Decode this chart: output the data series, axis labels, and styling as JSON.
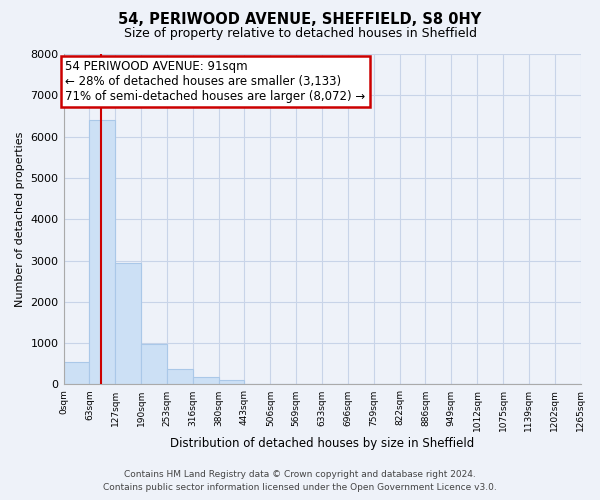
{
  "title": "54, PERIWOOD AVENUE, SHEFFIELD, S8 0HY",
  "subtitle": "Size of property relative to detached houses in Sheffield",
  "xlabel": "Distribution of detached houses by size in Sheffield",
  "ylabel": "Number of detached properties",
  "bin_labels": [
    "0sqm",
    "63sqm",
    "127sqm",
    "190sqm",
    "253sqm",
    "316sqm",
    "380sqm",
    "443sqm",
    "506sqm",
    "569sqm",
    "633sqm",
    "696sqm",
    "759sqm",
    "822sqm",
    "886sqm",
    "949sqm",
    "1012sqm",
    "1075sqm",
    "1139sqm",
    "1202sqm",
    "1265sqm"
  ],
  "bar_heights": [
    550,
    6400,
    2950,
    975,
    370,
    175,
    100,
    0,
    0,
    0,
    0,
    0,
    0,
    0,
    0,
    0,
    0,
    0,
    0,
    0
  ],
  "bar_color": "#cce0f5",
  "bar_edge_color": "#aac8e8",
  "annotation_line1": "54 PERIWOOD AVENUE: 91sqm",
  "annotation_line2": "← 28% of detached houses are smaller (3,133)",
  "annotation_line3": "71% of semi-detached houses are larger (8,072) →",
  "annotation_box_color": "white",
  "annotation_box_edge_color": "#cc0000",
  "property_line_color": "#cc0000",
  "ylim": [
    0,
    8000
  ],
  "yticks": [
    0,
    1000,
    2000,
    3000,
    4000,
    5000,
    6000,
    7000,
    8000
  ],
  "footer_line1": "Contains HM Land Registry data © Crown copyright and database right 2024.",
  "footer_line2": "Contains public sector information licensed under the Open Government Licence v3.0.",
  "bg_color": "#eef2f9",
  "grid_color": "#c8d4e8"
}
